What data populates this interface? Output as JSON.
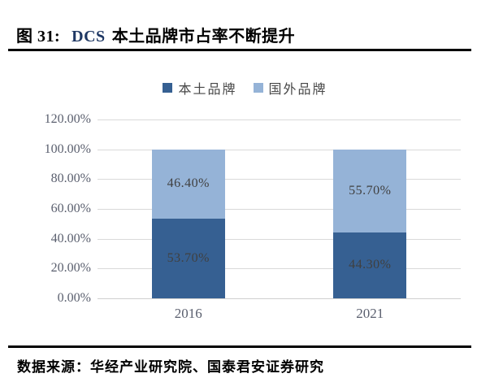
{
  "header": {
    "figure_label": "图 31:",
    "title_acronym": "DCS",
    "title_text": "本土品牌市占率不断提升"
  },
  "chart_data": {
    "type": "bar",
    "stacked": true,
    "title": "DCS 本土品牌市占率不断提升",
    "categories": [
      "2016",
      "2021"
    ],
    "series": [
      {
        "name": "本土品牌",
        "color": "#366092",
        "values": [
          53.7,
          44.3
        ],
        "labels": [
          "53.70%",
          "44.30%"
        ]
      },
      {
        "name": "国外品牌",
        "color": "#95B3D7",
        "values": [
          46.4,
          55.7
        ],
        "labels": [
          "46.40%",
          "55.70%"
        ]
      }
    ],
    "y_axis": {
      "min": 0,
      "max": 120,
      "step": 20,
      "tick_labels": [
        "120.00%",
        "100.00%",
        "80.00%",
        "60.00%",
        "40.00%",
        "20.00%",
        "0.00%"
      ]
    },
    "legend_position": "top",
    "grid": true
  },
  "footer": {
    "source_text": "数据来源：华经产业研究院、国泰君安证券研究"
  },
  "colors": {
    "series_domestic": "#366092",
    "series_foreign": "#95B3D7",
    "gridline": "#D9D9D9",
    "axis_text": "#5a5f6e",
    "data_label": "#404040",
    "title_accent": "#1F3864",
    "rule": "#000000"
  }
}
